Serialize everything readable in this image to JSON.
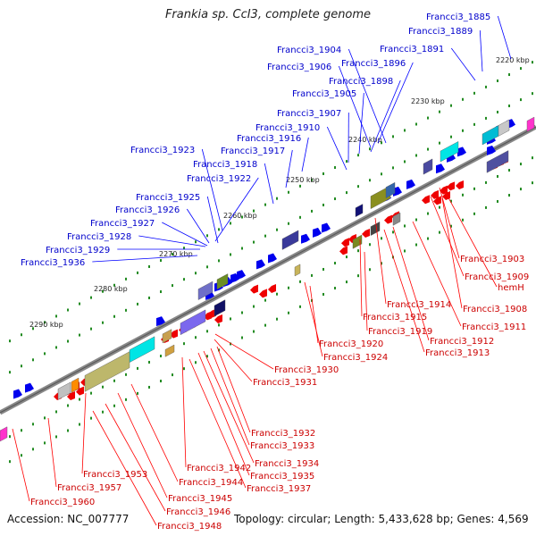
{
  "title": "Frankia sp. CcI3, complete genome",
  "accession": "Accession: NC_007777",
  "topology": "Topology: circular; Length: 5,433,628 bp; Genes: 4,569",
  "colors": {
    "forward": "#0000ff",
    "reverse": "#ff0000",
    "backbone": "#888888",
    "dots": "#228b22"
  },
  "ticks": [
    {
      "text": "2220 kbp"
    },
    {
      "text": "2230 kbp"
    },
    {
      "text": "2240 kbp"
    },
    {
      "text": "2250 kbp"
    },
    {
      "text": "2260 kbp"
    },
    {
      "text": "2270 kbp"
    },
    {
      "text": "2280 kbp"
    },
    {
      "text": "2290 kbp"
    }
  ],
  "labels_forward": [
    "Francci3_1885",
    "Francci3_1889",
    "Francci3_1891",
    "Francci3_1904",
    "Francci3_1896",
    "Francci3_1906",
    "Francci3_1898",
    "Francci3_1905",
    "Francci3_1907",
    "Francci3_1910",
    "Francci3_1916",
    "Francci3_1923",
    "Francci3_1917",
    "Francci3_1918",
    "Francci3_1922",
    "Francci3_1925",
    "Francci3_1926",
    "Francci3_1927",
    "Francci3_1928",
    "Francci3_1929",
    "Francci3_1936"
  ],
  "labels_reverse": [
    "Francci3_1903",
    "Francci3_1909",
    "hemH",
    "Francci3_1908",
    "Francci3_1914",
    "Francci3_1911",
    "Francci3_1915",
    "Francci3_1919",
    "Francci3_1912",
    "Francci3_1920",
    "Francci3_1913",
    "Francci3_1924",
    "Francci3_1930",
    "Francci3_1931",
    "Francci3_1932",
    "Francci3_1933",
    "Francci3_1934",
    "Francci3_1935",
    "Francci3_1942",
    "Francci3_1937",
    "Francci3_1953",
    "Francci3_1944",
    "Francci3_1945",
    "Francci3_1957",
    "Francci3_1946",
    "Francci3_1960",
    "Francci3_1948"
  ]
}
